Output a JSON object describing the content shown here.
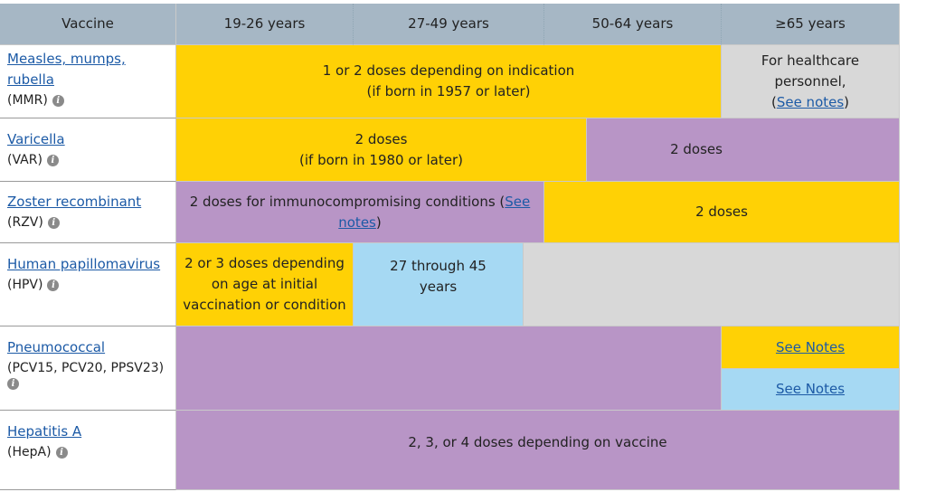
{
  "header": {
    "vaccine": "Vaccine",
    "age1": "19-26 years",
    "age2": "27-49 years",
    "age3": "50-64 years",
    "age4": "≥65 years"
  },
  "mmr": {
    "name_line1": "Measles, mumps,",
    "name_line2": "rubella",
    "abbr": "(MMR)",
    "main_line1": "1 or 2 doses depending on indication",
    "main_line2": "(if born in 1957 or later)",
    "side_line1": "For healthcare",
    "side_line2": "personnel,",
    "side_open": "(",
    "side_link": "See notes",
    "side_close": ")"
  },
  "varicella": {
    "name": "Varicella",
    "abbr": "(VAR)",
    "left_line1": "2 doses",
    "left_line2": "(if born in 1980 or later)",
    "right": "2 doses"
  },
  "zoster": {
    "name": "Zoster recombinant",
    "abbr": "(RZV)",
    "left_text": "2 doses for immunocompromising conditions (",
    "left_link1": "See",
    "left_link2": "notes",
    "left_close": ")",
    "right": "2 doses"
  },
  "hpv": {
    "name": "Human papillomavirus",
    "abbr": "(HPV)",
    "left_line1": "2 or 3 doses depending",
    "left_line2": "on age at initial",
    "left_line3": "vaccination or condition",
    "mid_line1": "27 through 45",
    "mid_line2": "years"
  },
  "pneumo": {
    "name": "Pneumococcal",
    "abbr": "(PCV15, PCV20, PPSV23)",
    "notes_yellow": "See Notes",
    "notes_blue": "See Notes"
  },
  "hepa": {
    "name": "Hepatitis A",
    "abbr": "(HepA)",
    "main": "2, 3, or 4 doses depending on vaccine"
  },
  "colors": {
    "yellow": "#ffd105",
    "purple": "#b895c6",
    "gray": "#d8d8d8",
    "blue": "#a6d9f3",
    "header": "#a6b7c5",
    "link": "#1c5aa6"
  },
  "icons": {
    "info": "info-circle-icon"
  }
}
